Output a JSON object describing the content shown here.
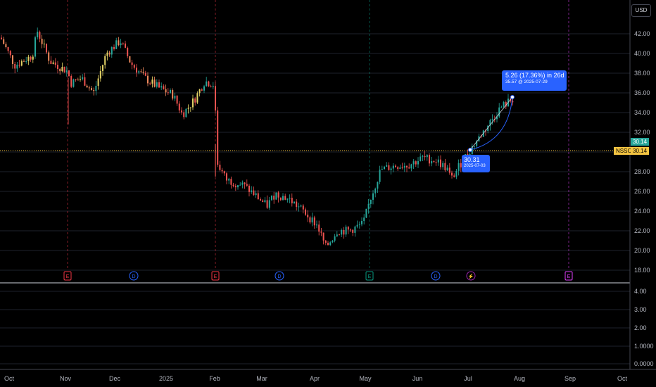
{
  "currency": "USD",
  "symbol": "NSSC",
  "current_price": "30.14",
  "price_tag_green": "30.14",
  "price_axis_labels": [
    "42.00",
    "40.00",
    "38.00",
    "36.00",
    "34.00",
    "32.00",
    "28.00",
    "26.00",
    "24.00",
    "22.00",
    "20.00",
    "18.00"
  ],
  "indicator_axis_labels": [
    "4.00",
    "3.00",
    "2.00",
    "1.0000",
    "0.0000"
  ],
  "time_axis_labels": [
    "Oct",
    "Nov",
    "Dec",
    "2025",
    "Feb",
    "Mar",
    "Apr",
    "May",
    "Jun",
    "Jul",
    "Aug",
    "Sep",
    "Oct"
  ],
  "event_markers": [
    {
      "type": "earnings",
      "label": "E",
      "color": "#f23645"
    },
    {
      "type": "dividend",
      "label": "D",
      "color": "#2962ff"
    },
    {
      "type": "earnings",
      "label": "E",
      "color": "#f23645"
    },
    {
      "type": "dividend",
      "label": "D",
      "color": "#2962ff"
    },
    {
      "type": "earnings",
      "label": "E",
      "color": "#089981"
    },
    {
      "type": "dividend",
      "label": "D",
      "color": "#2962ff"
    },
    {
      "type": "split",
      "label": "⚡",
      "color": "#9c27b0"
    },
    {
      "type": "earnings-future",
      "label": "E",
      "color": "#e040fb"
    }
  ],
  "measure": {
    "headline": "5.26 (17.36%) in 26d",
    "end_detail": "35.57 @ 2025-07-29",
    "start_price": "30.31",
    "start_date": "2025-07-03"
  },
  "colors": {
    "up": "#26a69a",
    "down": "#ef5350",
    "accent": "#2962ff",
    "price_line": "#f5c542"
  },
  "chart_data": {
    "type": "candlestick",
    "x_range": [
      "Oct",
      "Oct"
    ],
    "ylim": [
      18,
      43
    ],
    "series_close": [
      [
        "Oct",
        41.5
      ],
      [
        "Oct",
        39.0
      ],
      [
        "Nov",
        39.5
      ],
      [
        "Nov",
        37.5
      ],
      [
        "Dec",
        39.5
      ],
      [
        "Dec",
        41.0
      ],
      [
        "Dec",
        38.5
      ],
      [
        "2025",
        36.0
      ],
      [
        "2025",
        34.0
      ],
      [
        "Feb",
        37.5
      ],
      [
        "Feb",
        28.5
      ],
      [
        "Feb",
        27.0
      ],
      [
        "Mar",
        26.0
      ],
      [
        "Mar",
        24.5
      ],
      [
        "Apr",
        22.5
      ],
      [
        "Apr",
        20.0
      ],
      [
        "Apr",
        21.5
      ],
      [
        "May",
        22.5
      ],
      [
        "May",
        27.5
      ],
      [
        "Jun",
        28.5
      ],
      [
        "Jun",
        29.0
      ],
      [
        "Jul",
        28.0
      ],
      [
        "Jul",
        30.5
      ],
      [
        "Jul",
        33.5
      ],
      [
        "Jul",
        35.5
      ]
    ]
  }
}
